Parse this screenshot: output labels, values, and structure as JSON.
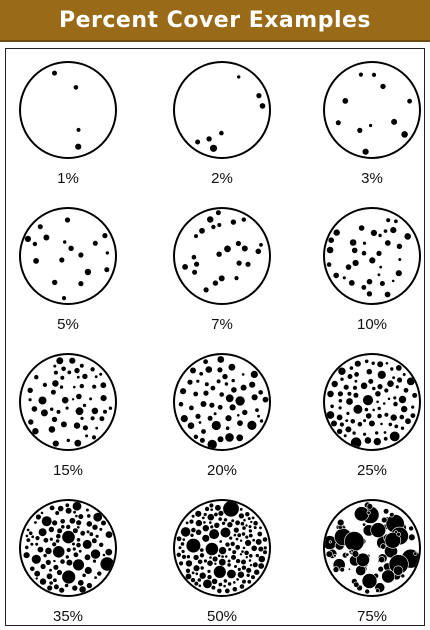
{
  "title": "Percent Cover Examples",
  "colors": {
    "banner": "#996a18",
    "banner_text": "#ffffff",
    "ink": "#000000"
  },
  "examples": [
    {
      "label": "1%",
      "cover": 0.01
    },
    {
      "label": "2%",
      "cover": 0.02
    },
    {
      "label": "3%",
      "cover": 0.03
    },
    {
      "label": "5%",
      "cover": 0.05
    },
    {
      "label": "7%",
      "cover": 0.07
    },
    {
      "label": "10%",
      "cover": 0.1
    },
    {
      "label": "15%",
      "cover": 0.15
    },
    {
      "label": "20%",
      "cover": 0.2
    },
    {
      "label": "25%",
      "cover": 0.25
    },
    {
      "label": "35%",
      "cover": 0.35
    },
    {
      "label": "50%",
      "cover": 0.5
    },
    {
      "label": "75%",
      "cover": 0.75
    }
  ]
}
